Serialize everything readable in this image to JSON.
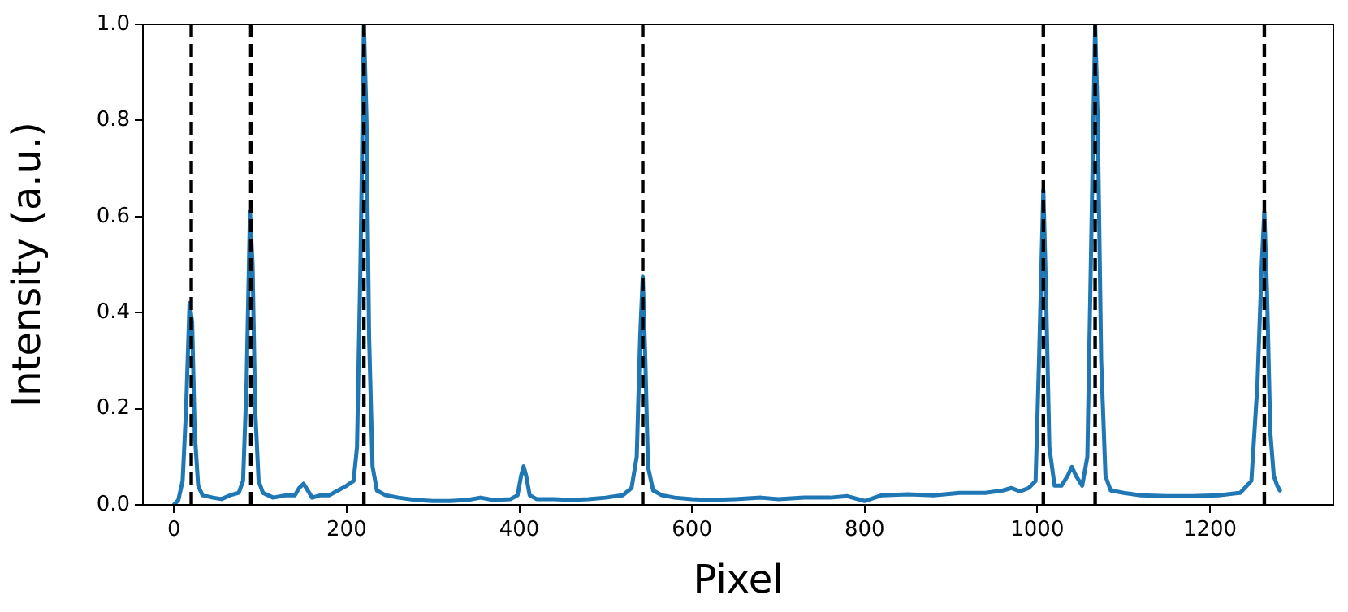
{
  "chart_data": {
    "type": "line",
    "xlabel": "Pixel",
    "ylabel": "Intensity (a.u.)",
    "xlim": [
      -36,
      1343
    ],
    "xticks": [
      0,
      200,
      400,
      600,
      800,
      1000,
      1200
    ],
    "ylim": [
      0,
      1
    ],
    "yticks": [
      {
        "value": 0,
        "label": "0.0"
      },
      {
        "value": 0.2,
        "label": "0.2"
      },
      {
        "value": 0.4,
        "label": "0.4"
      },
      {
        "value": 0.6,
        "label": "0.6"
      },
      {
        "value": 0.8,
        "label": "0.8"
      },
      {
        "value": 1,
        "label": "1.0"
      }
    ],
    "grid": false,
    "legend": false,
    "marker": "none",
    "line_style": "solid",
    "series": [
      {
        "color": "#1f77b4",
        "x": [
          0,
          5,
          10,
          14,
          18,
          21,
          24,
          28,
          33,
          45,
          55,
          65,
          75,
          80,
          84,
          88,
          91,
          94,
          98,
          103,
          115,
          130,
          140,
          145,
          150,
          155,
          160,
          170,
          180,
          190,
          200,
          208,
          212,
          216,
          220,
          223,
          226,
          230,
          235,
          245,
          260,
          280,
          300,
          320,
          340,
          355,
          370,
          390,
          398,
          402,
          405,
          408,
          412,
          420,
          440,
          460,
          480,
          500,
          520,
          530,
          536,
          540,
          543,
          546,
          549,
          555,
          565,
          580,
          600,
          620,
          650,
          680,
          700,
          730,
          760,
          780,
          800,
          820,
          850,
          880,
          910,
          940,
          960,
          970,
          980,
          990,
          998,
          1002,
          1007,
          1010,
          1014,
          1020,
          1028,
          1035,
          1040,
          1045,
          1052,
          1058,
          1062,
          1067,
          1070,
          1074,
          1079,
          1085,
          1100,
          1120,
          1150,
          1180,
          1210,
          1235,
          1248,
          1255,
          1260,
          1263,
          1266,
          1270,
          1274,
          1278,
          1281
        ],
        "values": [
          0,
          0.01,
          0.05,
          0.2,
          0.42,
          0.38,
          0.15,
          0.04,
          0.02,
          0.015,
          0.012,
          0.02,
          0.025,
          0.05,
          0.25,
          0.61,
          0.5,
          0.2,
          0.05,
          0.025,
          0.015,
          0.02,
          0.02,
          0.035,
          0.044,
          0.03,
          0.015,
          0.02,
          0.02,
          0.03,
          0.04,
          0.05,
          0.12,
          0.5,
          1,
          0.8,
          0.35,
          0.08,
          0.03,
          0.02,
          0.015,
          0.01,
          0.008,
          0.008,
          0.01,
          0.015,
          0.01,
          0.012,
          0.02,
          0.06,
          0.08,
          0.06,
          0.02,
          0.012,
          0.012,
          0.01,
          0.012,
          0.015,
          0.02,
          0.035,
          0.1,
          0.35,
          0.475,
          0.3,
          0.08,
          0.03,
          0.02,
          0.015,
          0.012,
          0.01,
          0.012,
          0.015,
          0.012,
          0.015,
          0.015,
          0.018,
          0.008,
          0.02,
          0.022,
          0.02,
          0.025,
          0.025,
          0.03,
          0.035,
          0.028,
          0.035,
          0.05,
          0.3,
          0.655,
          0.45,
          0.12,
          0.04,
          0.04,
          0.06,
          0.079,
          0.06,
          0.04,
          0.1,
          0.5,
          1,
          0.8,
          0.3,
          0.06,
          0.03,
          0.025,
          0.02,
          0.018,
          0.018,
          0.02,
          0.025,
          0.05,
          0.25,
          0.5,
          0.61,
          0.45,
          0.15,
          0.06,
          0.04,
          0.03
        ]
      }
    ],
    "ref_lines": [
      {
        "axis": "x",
        "value": 20,
        "color": "#000000",
        "line_style": "dashed"
      },
      {
        "axis": "x",
        "value": 89,
        "color": "#000000",
        "line_style": "dashed"
      },
      {
        "axis": "x",
        "value": 220,
        "color": "#000000",
        "line_style": "dashed"
      },
      {
        "axis": "x",
        "value": 543,
        "color": "#000000",
        "line_style": "dashed"
      },
      {
        "axis": "x",
        "value": 1007,
        "color": "#000000",
        "line_style": "dashed"
      },
      {
        "axis": "x",
        "value": 1067,
        "color": "#000000",
        "line_style": "dashed"
      },
      {
        "axis": "x",
        "value": 1263,
        "color": "#000000",
        "line_style": "dashed"
      }
    ]
  }
}
